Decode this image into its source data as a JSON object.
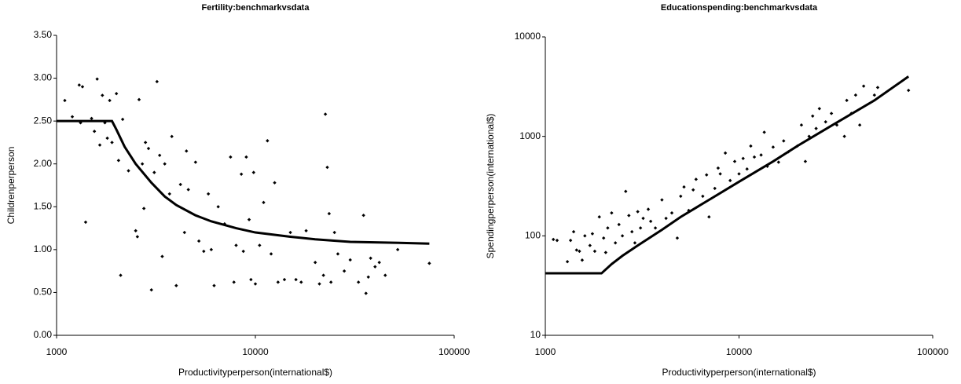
{
  "chart_data": [
    {
      "type": "scatter",
      "title": "Fertility:benchmarkvsdata",
      "xlabel": "Productivityperperson(international$)",
      "ylabel": "Childrenperperson",
      "xscale": "log",
      "xlim": [
        1000,
        100000
      ],
      "xticks": [
        1000,
        10000,
        100000
      ],
      "ylim": [
        0,
        3.5
      ],
      "yticks": [
        {
          "value": 0,
          "label": "0.00"
        },
        {
          "value": 0.5,
          "label": "0.50"
        },
        {
          "value": 1,
          "label": "1.00"
        },
        {
          "value": 1.5,
          "label": "1.50"
        },
        {
          "value": 2,
          "label": "2.00"
        },
        {
          "value": 2.5,
          "label": "2.50"
        },
        {
          "value": 3,
          "label": "3.00"
        },
        {
          "value": 3.5,
          "label": "3.50"
        }
      ],
      "series": [
        {
          "type": "scatter",
          "color": "#000000",
          "x": [
            1100,
            1200,
            1300,
            1350,
            1320,
            1400,
            1500,
            1550,
            1600,
            1650,
            1700,
            1750,
            1800,
            1850,
            1900,
            2000,
            2050,
            2100,
            2150,
            2300,
            2500,
            2550,
            2600,
            2700,
            2750,
            2800,
            2900,
            3000,
            3100,
            3200,
            3300,
            3400,
            3500,
            3700,
            3800,
            4000,
            4200,
            4400,
            4500,
            4600,
            5000,
            5200,
            5500,
            5800,
            6000,
            6200,
            6500,
            7000,
            7500,
            7800,
            8000,
            8500,
            8700,
            9000,
            9300,
            9500,
            9800,
            10000,
            10500,
            11000,
            11500,
            12000,
            12500,
            13000,
            14000,
            15000,
            16000,
            17000,
            18000,
            20000,
            21000,
            22000,
            22500,
            23000,
            23500,
            24000,
            25000,
            26000,
            28000,
            30000,
            33000,
            35000,
            36000,
            37000,
            38000,
            40000,
            42000,
            45000,
            52000,
            75000
          ],
          "values": [
            2.74,
            2.55,
            2.92,
            2.9,
            2.48,
            1.32,
            2.53,
            2.38,
            2.99,
            2.22,
            2.8,
            2.48,
            2.3,
            2.74,
            2.25,
            2.82,
            2.04,
            0.7,
            2.52,
            1.92,
            1.22,
            1.15,
            2.75,
            2.0,
            1.48,
            2.25,
            2.18,
            0.53,
            1.9,
            2.96,
            2.1,
            0.92,
            2.0,
            1.65,
            2.32,
            0.58,
            1.76,
            1.2,
            2.15,
            1.7,
            2.02,
            1.1,
            0.98,
            1.65,
            1.0,
            0.58,
            1.5,
            1.3,
            2.08,
            0.62,
            1.05,
            1.88,
            0.98,
            2.08,
            1.35,
            0.65,
            1.9,
            0.6,
            1.05,
            1.55,
            2.27,
            0.95,
            1.78,
            0.62,
            0.65,
            1.2,
            0.65,
            0.62,
            1.22,
            0.85,
            0.6,
            0.7,
            2.58,
            1.96,
            1.42,
            0.62,
            1.2,
            0.95,
            0.75,
            0.88,
            0.62,
            1.4,
            0.49,
            0.68,
            0.9,
            0.8,
            0.85,
            0.7,
            1.0,
            0.84
          ]
        },
        {
          "type": "line",
          "color": "#000000",
          "x": [
            1000,
            1900,
            2000,
            2200,
            2500,
            3000,
            3500,
            4000,
            5000,
            6000,
            8000,
            10000,
            15000,
            20000,
            30000,
            50000,
            75000
          ],
          "values": [
            2.5,
            2.5,
            2.4,
            2.2,
            2.0,
            1.78,
            1.62,
            1.52,
            1.4,
            1.33,
            1.25,
            1.2,
            1.15,
            1.12,
            1.09,
            1.08,
            1.07
          ]
        }
      ]
    },
    {
      "type": "scatter",
      "title": "Educationspending:benchmarkvsdata",
      "xlabel": "Productivityperperson(international$)",
      "ylabel": "Spendingperperson(international$)",
      "xscale": "log",
      "xlim": [
        1000,
        100000
      ],
      "xticks": [
        1000,
        10000,
        100000
      ],
      "yscale": "log",
      "ylim": [
        10,
        10000
      ],
      "yticks": [
        10,
        100,
        1000,
        10000
      ],
      "series": [
        {
          "type": "scatter",
          "color": "#000000",
          "x": [
            1100,
            1150,
            1300,
            1350,
            1400,
            1450,
            1500,
            1550,
            1600,
            1700,
            1750,
            1800,
            1900,
            2000,
            2050,
            2100,
            2200,
            2300,
            2400,
            2500,
            2600,
            2700,
            2800,
            2900,
            3000,
            3100,
            3200,
            3400,
            3500,
            3700,
            4000,
            4200,
            4500,
            4800,
            5000,
            5200,
            5500,
            5800,
            6000,
            6500,
            6800,
            7000,
            7500,
            7800,
            8000,
            8500,
            9000,
            9500,
            10000,
            10500,
            11000,
            11500,
            12000,
            13000,
            13500,
            14000,
            15000,
            16000,
            17000,
            18000,
            20000,
            21000,
            22000,
            23000,
            24000,
            25000,
            26000,
            28000,
            30000,
            32000,
            35000,
            36000,
            38000,
            40000,
            42000,
            44000,
            50000,
            52000,
            75000
          ],
          "values": [
            92,
            90,
            55,
            90,
            110,
            72,
            70,
            57,
            100,
            80,
            105,
            70,
            155,
            95,
            68,
            120,
            170,
            85,
            130,
            100,
            280,
            160,
            110,
            85,
            175,
            120,
            150,
            185,
            140,
            120,
            230,
            150,
            170,
            95,
            250,
            310,
            180,
            290,
            370,
            250,
            410,
            155,
            300,
            480,
            420,
            680,
            360,
            560,
            420,
            600,
            470,
            800,
            620,
            650,
            1100,
            500,
            780,
            550,
            900,
            700,
            800,
            1300,
            560,
            1000,
            1600,
            1200,
            1900,
            1400,
            1700,
            1300,
            1000,
            2300,
            1700,
            2600,
            1300,
            3200,
            2600,
            3100,
            2900
          ]
        },
        {
          "type": "line",
          "color": "#000000",
          "x": [
            1000,
            1950,
            2200,
            2500,
            3000,
            4000,
            5000,
            7000,
            10000,
            15000,
            20000,
            30000,
            50000,
            75000
          ],
          "values": [
            42,
            42,
            52,
            63,
            80,
            115,
            155,
            230,
            350,
            560,
            800,
            1280,
            2300,
            4000
          ]
        }
      ]
    }
  ]
}
